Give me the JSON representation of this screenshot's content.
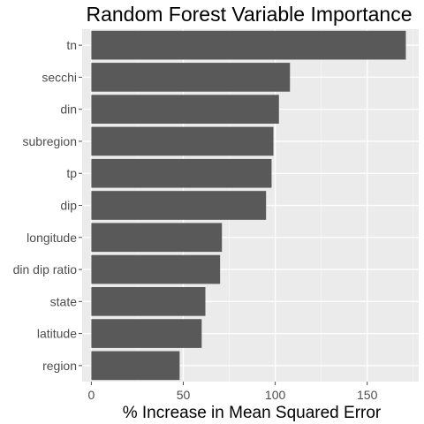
{
  "chart_data": {
    "type": "bar",
    "orientation": "horizontal",
    "title": "Random Forest Variable Importance",
    "xlabel": "% Increase in Mean Squared Error",
    "ylabel": "",
    "categories": [
      "tn",
      "secchi",
      "din",
      "subregion",
      "tp",
      "dip",
      "longitude",
      "din dip ratio",
      "state",
      "latitude",
      "region"
    ],
    "values": [
      171,
      108,
      102,
      99,
      98,
      95,
      71,
      70,
      62,
      60,
      48
    ],
    "xlim": [
      -5,
      178
    ],
    "xticks": [
      0,
      50,
      100,
      150
    ],
    "xtick_labels": [
      "0",
      "50",
      "100",
      "150"
    ],
    "grid": true,
    "colors": {
      "bar": "#595959",
      "panel": "#ebebeb",
      "grid_major": "#ffffff",
      "grid_minor": "#f5f5f5",
      "tick": "#4d4d4d"
    }
  }
}
